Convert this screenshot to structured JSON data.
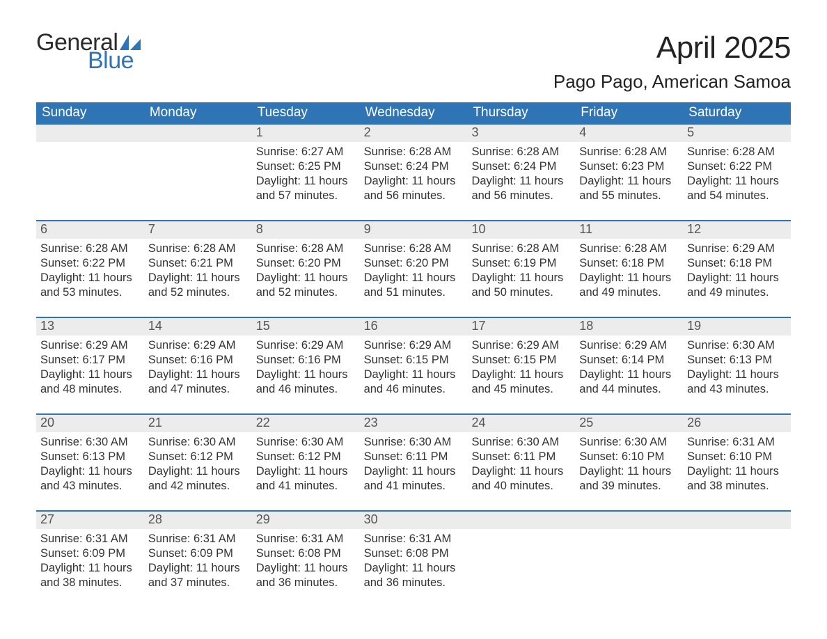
{
  "logo": {
    "line1": "General",
    "line2": "Blue"
  },
  "title": "April 2025",
  "location": "Pago Pago, American Samoa",
  "colors": {
    "header_bg": "#2f74b5",
    "header_text": "#ffffff",
    "strip_bg": "#ececec",
    "strip_text": "#555555",
    "body_text": "#333333",
    "rule": "#2f74b5",
    "logo_blue": "#2f74b5",
    "page_bg": "#ffffff"
  },
  "typography": {
    "title_fontsize": 44,
    "location_fontsize": 26,
    "weekday_fontsize": 19,
    "daynum_fontsize": 18,
    "body_fontsize": 16.5,
    "logo_fontsize": 34
  },
  "weekdays": [
    "Sunday",
    "Monday",
    "Tuesday",
    "Wednesday",
    "Thursday",
    "Friday",
    "Saturday"
  ],
  "weeks": [
    [
      {
        "day": "",
        "sunrise": "",
        "sunset": "",
        "daylight": ""
      },
      {
        "day": "",
        "sunrise": "",
        "sunset": "",
        "daylight": ""
      },
      {
        "day": "1",
        "sunrise": "Sunrise: 6:27 AM",
        "sunset": "Sunset: 6:25 PM",
        "daylight": "Daylight: 11 hours and 57 minutes."
      },
      {
        "day": "2",
        "sunrise": "Sunrise: 6:28 AM",
        "sunset": "Sunset: 6:24 PM",
        "daylight": "Daylight: 11 hours and 56 minutes."
      },
      {
        "day": "3",
        "sunrise": "Sunrise: 6:28 AM",
        "sunset": "Sunset: 6:24 PM",
        "daylight": "Daylight: 11 hours and 56 minutes."
      },
      {
        "day": "4",
        "sunrise": "Sunrise: 6:28 AM",
        "sunset": "Sunset: 6:23 PM",
        "daylight": "Daylight: 11 hours and 55 minutes."
      },
      {
        "day": "5",
        "sunrise": "Sunrise: 6:28 AM",
        "sunset": "Sunset: 6:22 PM",
        "daylight": "Daylight: 11 hours and 54 minutes."
      }
    ],
    [
      {
        "day": "6",
        "sunrise": "Sunrise: 6:28 AM",
        "sunset": "Sunset: 6:22 PM",
        "daylight": "Daylight: 11 hours and 53 minutes."
      },
      {
        "day": "7",
        "sunrise": "Sunrise: 6:28 AM",
        "sunset": "Sunset: 6:21 PM",
        "daylight": "Daylight: 11 hours and 52 minutes."
      },
      {
        "day": "8",
        "sunrise": "Sunrise: 6:28 AM",
        "sunset": "Sunset: 6:20 PM",
        "daylight": "Daylight: 11 hours and 52 minutes."
      },
      {
        "day": "9",
        "sunrise": "Sunrise: 6:28 AM",
        "sunset": "Sunset: 6:20 PM",
        "daylight": "Daylight: 11 hours and 51 minutes."
      },
      {
        "day": "10",
        "sunrise": "Sunrise: 6:28 AM",
        "sunset": "Sunset: 6:19 PM",
        "daylight": "Daylight: 11 hours and 50 minutes."
      },
      {
        "day": "11",
        "sunrise": "Sunrise: 6:28 AM",
        "sunset": "Sunset: 6:18 PM",
        "daylight": "Daylight: 11 hours and 49 minutes."
      },
      {
        "day": "12",
        "sunrise": "Sunrise: 6:29 AM",
        "sunset": "Sunset: 6:18 PM",
        "daylight": "Daylight: 11 hours and 49 minutes."
      }
    ],
    [
      {
        "day": "13",
        "sunrise": "Sunrise: 6:29 AM",
        "sunset": "Sunset: 6:17 PM",
        "daylight": "Daylight: 11 hours and 48 minutes."
      },
      {
        "day": "14",
        "sunrise": "Sunrise: 6:29 AM",
        "sunset": "Sunset: 6:16 PM",
        "daylight": "Daylight: 11 hours and 47 minutes."
      },
      {
        "day": "15",
        "sunrise": "Sunrise: 6:29 AM",
        "sunset": "Sunset: 6:16 PM",
        "daylight": "Daylight: 11 hours and 46 minutes."
      },
      {
        "day": "16",
        "sunrise": "Sunrise: 6:29 AM",
        "sunset": "Sunset: 6:15 PM",
        "daylight": "Daylight: 11 hours and 46 minutes."
      },
      {
        "day": "17",
        "sunrise": "Sunrise: 6:29 AM",
        "sunset": "Sunset: 6:15 PM",
        "daylight": "Daylight: 11 hours and 45 minutes."
      },
      {
        "day": "18",
        "sunrise": "Sunrise: 6:29 AM",
        "sunset": "Sunset: 6:14 PM",
        "daylight": "Daylight: 11 hours and 44 minutes."
      },
      {
        "day": "19",
        "sunrise": "Sunrise: 6:30 AM",
        "sunset": "Sunset: 6:13 PM",
        "daylight": "Daylight: 11 hours and 43 minutes."
      }
    ],
    [
      {
        "day": "20",
        "sunrise": "Sunrise: 6:30 AM",
        "sunset": "Sunset: 6:13 PM",
        "daylight": "Daylight: 11 hours and 43 minutes."
      },
      {
        "day": "21",
        "sunrise": "Sunrise: 6:30 AM",
        "sunset": "Sunset: 6:12 PM",
        "daylight": "Daylight: 11 hours and 42 minutes."
      },
      {
        "day": "22",
        "sunrise": "Sunrise: 6:30 AM",
        "sunset": "Sunset: 6:12 PM",
        "daylight": "Daylight: 11 hours and 41 minutes."
      },
      {
        "day": "23",
        "sunrise": "Sunrise: 6:30 AM",
        "sunset": "Sunset: 6:11 PM",
        "daylight": "Daylight: 11 hours and 41 minutes."
      },
      {
        "day": "24",
        "sunrise": "Sunrise: 6:30 AM",
        "sunset": "Sunset: 6:11 PM",
        "daylight": "Daylight: 11 hours and 40 minutes."
      },
      {
        "day": "25",
        "sunrise": "Sunrise: 6:30 AM",
        "sunset": "Sunset: 6:10 PM",
        "daylight": "Daylight: 11 hours and 39 minutes."
      },
      {
        "day": "26",
        "sunrise": "Sunrise: 6:31 AM",
        "sunset": "Sunset: 6:10 PM",
        "daylight": "Daylight: 11 hours and 38 minutes."
      }
    ],
    [
      {
        "day": "27",
        "sunrise": "Sunrise: 6:31 AM",
        "sunset": "Sunset: 6:09 PM",
        "daylight": "Daylight: 11 hours and 38 minutes."
      },
      {
        "day": "28",
        "sunrise": "Sunrise: 6:31 AM",
        "sunset": "Sunset: 6:09 PM",
        "daylight": "Daylight: 11 hours and 37 minutes."
      },
      {
        "day": "29",
        "sunrise": "Sunrise: 6:31 AM",
        "sunset": "Sunset: 6:08 PM",
        "daylight": "Daylight: 11 hours and 36 minutes."
      },
      {
        "day": "30",
        "sunrise": "Sunrise: 6:31 AM",
        "sunset": "Sunset: 6:08 PM",
        "daylight": "Daylight: 11 hours and 36 minutes."
      },
      {
        "day": "",
        "sunrise": "",
        "sunset": "",
        "daylight": ""
      },
      {
        "day": "",
        "sunrise": "",
        "sunset": "",
        "daylight": ""
      },
      {
        "day": "",
        "sunrise": "",
        "sunset": "",
        "daylight": ""
      }
    ]
  ]
}
